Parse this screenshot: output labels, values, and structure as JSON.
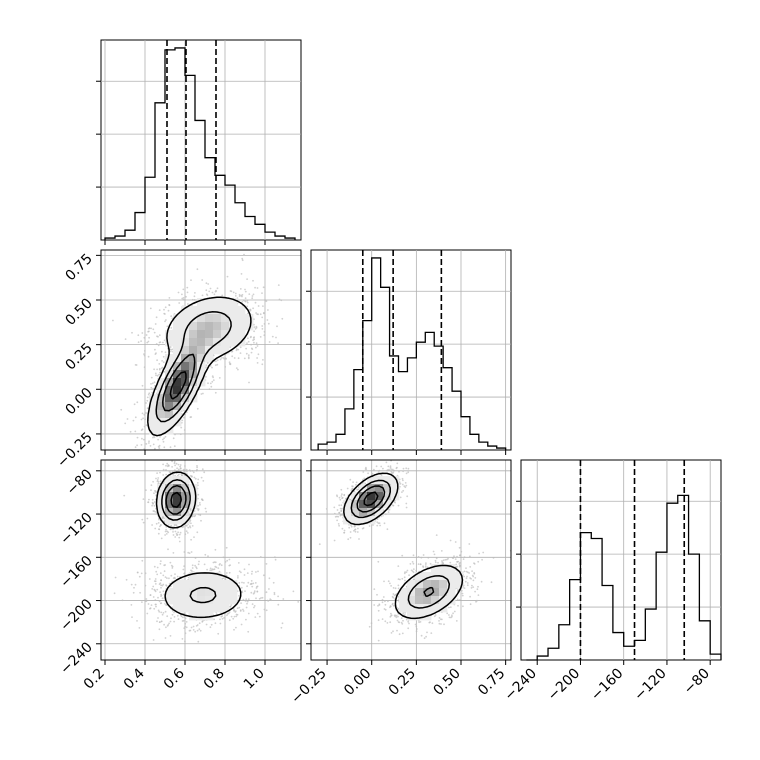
{
  "chart_data": {
    "type": "corner",
    "grid": true,
    "colors": {
      "line": "#000000",
      "grid": "#b0b0b0",
      "scatter": "#bdbdbd",
      "density": "#555555"
    },
    "parameters": [
      {
        "range": [
          0.18,
          1.18
        ],
        "ticks": [
          0.2,
          0.4,
          0.6,
          0.8,
          1.0
        ],
        "tick_labels": [
          "0.2",
          "0.4",
          "0.6",
          "0.8",
          "1.0"
        ]
      },
      {
        "range": [
          -0.34,
          0.78
        ],
        "ticks": [
          -0.25,
          0.0,
          0.25,
          0.5,
          0.75
        ],
        "tick_labels": [
          "−0.25",
          "0.00",
          "0.25",
          "0.50",
          "0.75"
        ]
      },
      {
        "range": [
          -255,
          -70
        ],
        "ticks": [
          -240,
          -200,
          -160,
          -120,
          -80
        ],
        "tick_labels": [
          "−240",
          "−200",
          "−160",
          "−120",
          "−80"
        ]
      }
    ],
    "histograms": [
      {
        "param": 0,
        "quantiles": [
          0.51,
          0.605,
          0.755
        ],
        "bin_edges": [
          0.2,
          0.25,
          0.3,
          0.35,
          0.4,
          0.45,
          0.5,
          0.55,
          0.6,
          0.65,
          0.7,
          0.75,
          0.8,
          0.85,
          0.9,
          0.95,
          1.0,
          1.05,
          1.1,
          1.15
        ],
        "counts": [
          0.01,
          0.02,
          0.05,
          0.14,
          0.32,
          0.7,
          0.97,
          0.98,
          0.84,
          0.61,
          0.42,
          0.33,
          0.28,
          0.19,
          0.12,
          0.08,
          0.04,
          0.02,
          0.01
        ]
      },
      {
        "param": 1,
        "quantiles": [
          -0.05,
          0.12,
          0.39
        ],
        "bin_edges": [
          -0.3,
          -0.25,
          -0.2,
          -0.15,
          -0.1,
          -0.05,
          0.0,
          0.05,
          0.1,
          0.15,
          0.2,
          0.25,
          0.3,
          0.35,
          0.4,
          0.45,
          0.5,
          0.55,
          0.6,
          0.65,
          0.7,
          0.75
        ],
        "counts": [
          0.03,
          0.04,
          0.08,
          0.21,
          0.41,
          0.66,
          0.98,
          0.83,
          0.48,
          0.4,
          0.47,
          0.55,
          0.6,
          0.53,
          0.42,
          0.3,
          0.17,
          0.08,
          0.04,
          0.02,
          0.01
        ]
      },
      {
        "param": 2,
        "quantiles": [
          -200,
          -150,
          -104
        ],
        "bin_edges": [
          -250,
          -240,
          -230,
          -220,
          -210,
          -200,
          -190,
          -180,
          -170,
          -160,
          -150,
          -140,
          -130,
          -120,
          -110,
          -100,
          -90,
          -80,
          -70
        ],
        "counts": [
          0.0,
          0.02,
          0.06,
          0.18,
          0.41,
          0.65,
          0.62,
          0.38,
          0.14,
          0.07,
          0.1,
          0.26,
          0.55,
          0.8,
          0.84,
          0.54,
          0.2,
          0.03
        ]
      }
    ],
    "pairs": [
      {
        "x": 0,
        "y": 1,
        "modes": [
          {
            "mean": [
              0.565,
              0.02
            ],
            "sd": [
              0.07,
              0.13
            ],
            "rho": 0.7,
            "weight": 0.55
          },
          {
            "mean": [
              0.72,
              0.34
            ],
            "sd": [
              0.12,
              0.1
            ],
            "rho": 0.25,
            "weight": 0.45
          }
        ]
      },
      {
        "x": 0,
        "y": 2,
        "modes": [
          {
            "mean": [
              0.555,
              -107
            ],
            "sd": [
              0.045,
              12
            ],
            "rho": 0.1,
            "weight": 0.5
          },
          {
            "mean": [
              0.69,
              -195
            ],
            "sd": [
              0.12,
              13
            ],
            "rho": 0.05,
            "weight": 0.5
          }
        ]
      },
      {
        "x": 1,
        "y": 2,
        "modes": [
          {
            "mean": [
              -0.005,
              -106
            ],
            "sd": [
              0.07,
              11
            ],
            "rho": 0.5,
            "weight": 0.5
          },
          {
            "mean": [
              0.32,
              -192
            ],
            "sd": [
              0.1,
              13
            ],
            "rho": 0.45,
            "weight": 0.5
          }
        ]
      }
    ]
  }
}
